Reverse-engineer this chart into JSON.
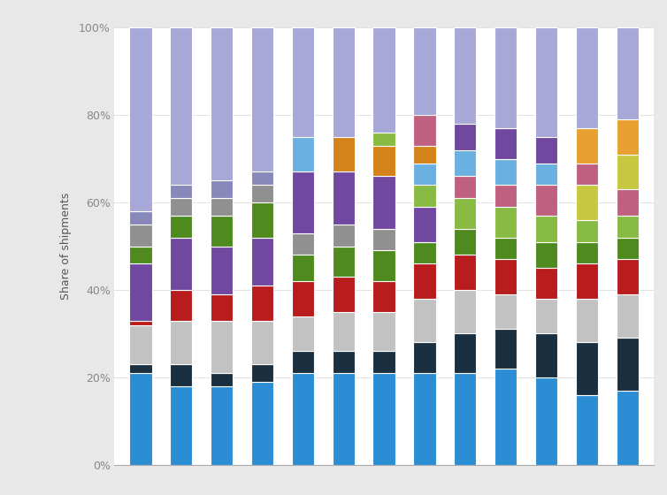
{
  "ylabel": "Share of shipments",
  "background_color": "#e8e8e8",
  "plot_background": "#ffffff",
  "bar_width": 0.55,
  "ytick_labels": [
    "0%",
    "20%",
    "40%",
    "60%",
    "80%",
    "100%"
  ],
  "ytick_values": [
    0,
    20,
    40,
    60,
    80,
    100
  ],
  "bars": [
    {
      "segments": [
        21,
        2,
        9,
        1,
        13,
        4,
        5,
        3,
        42
      ],
      "colors": [
        "#2b8dd4",
        "#1a2f40",
        "#c2c2c2",
        "#b81c1c",
        "#7048a0",
        "#4e8a1e",
        "#909090",
        "#8888bb",
        "#a8a8d8"
      ]
    },
    {
      "segments": [
        18,
        5,
        10,
        7,
        12,
        5,
        4,
        3,
        36
      ],
      "colors": [
        "#2b8dd4",
        "#1a2f40",
        "#c2c2c2",
        "#b81c1c",
        "#7048a0",
        "#4e8a1e",
        "#909090",
        "#8888bb",
        "#a8a8d8"
      ]
    },
    {
      "segments": [
        18,
        3,
        12,
        6,
        11,
        7,
        4,
        4,
        35
      ],
      "colors": [
        "#2b8dd4",
        "#1a2f40",
        "#c2c2c2",
        "#b81c1c",
        "#7048a0",
        "#4e8a1e",
        "#909090",
        "#8888bb",
        "#a8a8d8"
      ]
    },
    {
      "segments": [
        19,
        4,
        10,
        8,
        11,
        8,
        4,
        3,
        33
      ],
      "colors": [
        "#2b8dd4",
        "#1a2f40",
        "#c2c2c2",
        "#b81c1c",
        "#7048a0",
        "#4e8a1e",
        "#909090",
        "#8888bb",
        "#a8a8d8"
      ]
    },
    {
      "segments": [
        21,
        5,
        8,
        8,
        6,
        5,
        14,
        8,
        25
      ],
      "colors": [
        "#2b8dd4",
        "#1a2f40",
        "#c2c2c2",
        "#b81c1c",
        "#4e8a1e",
        "#909090",
        "#7048a0",
        "#6ab0e0",
        "#a8a8d8"
      ]
    },
    {
      "segments": [
        21,
        5,
        9,
        8,
        7,
        5,
        12,
        8,
        25
      ],
      "colors": [
        "#2b8dd4",
        "#1a2f40",
        "#c2c2c2",
        "#b81c1c",
        "#4e8a1e",
        "#909090",
        "#7048a0",
        "#d4821a",
        "#a8a8d8"
      ]
    },
    {
      "segments": [
        21,
        5,
        9,
        7,
        7,
        5,
        12,
        7,
        3,
        24
      ],
      "colors": [
        "#2b8dd4",
        "#1a2f40",
        "#c2c2c2",
        "#b81c1c",
        "#4e8a1e",
        "#909090",
        "#7048a0",
        "#d4821a",
        "#88bb44",
        "#a8a8d8"
      ]
    },
    {
      "segments": [
        21,
        7,
        10,
        8,
        5,
        8,
        5,
        5,
        4,
        7,
        20
      ],
      "colors": [
        "#2b8dd4",
        "#1a2f40",
        "#c2c2c2",
        "#b81c1c",
        "#4e8a1e",
        "#7048a0",
        "#88bb44",
        "#6ab0e0",
        "#d4821a",
        "#c06080",
        "#a8a8d8"
      ]
    },
    {
      "segments": [
        21,
        9,
        10,
        8,
        6,
        7,
        5,
        6,
        6,
        22
      ],
      "colors": [
        "#2b8dd4",
        "#1a2f40",
        "#c2c2c2",
        "#b81c1c",
        "#4e8a1e",
        "#88bb44",
        "#c06080",
        "#6ab0e0",
        "#7048a0",
        "#a8a8d8"
      ]
    },
    {
      "segments": [
        22,
        9,
        8,
        8,
        5,
        7,
        5,
        6,
        7,
        23
      ],
      "colors": [
        "#2b8dd4",
        "#1a2f40",
        "#c2c2c2",
        "#b81c1c",
        "#4e8a1e",
        "#88bb44",
        "#c06080",
        "#6ab0e0",
        "#7048a0",
        "#a8a8d8"
      ]
    },
    {
      "segments": [
        20,
        10,
        8,
        7,
        6,
        6,
        7,
        5,
        6,
        25
      ],
      "colors": [
        "#2b8dd4",
        "#1a2f40",
        "#c2c2c2",
        "#b81c1c",
        "#4e8a1e",
        "#88bb44",
        "#c06080",
        "#6ab0e0",
        "#7048a0",
        "#a8a8d8"
      ]
    },
    {
      "segments": [
        16,
        12,
        10,
        8,
        5,
        5,
        8,
        5,
        8,
        23
      ],
      "colors": [
        "#2b8dd4",
        "#1a2f40",
        "#c2c2c2",
        "#b81c1c",
        "#4e8a1e",
        "#88bb44",
        "#c8c840",
        "#c06080",
        "#e8a030",
        "#a8a8d8"
      ]
    },
    {
      "segments": [
        17,
        12,
        10,
        8,
        5,
        5,
        6,
        8,
        8,
        21
      ],
      "colors": [
        "#2b8dd4",
        "#1a2f40",
        "#c2c2c2",
        "#b81c1c",
        "#4e8a1e",
        "#88bb44",
        "#c06080",
        "#c8c840",
        "#e8a030",
        "#a8a8d8"
      ]
    }
  ]
}
